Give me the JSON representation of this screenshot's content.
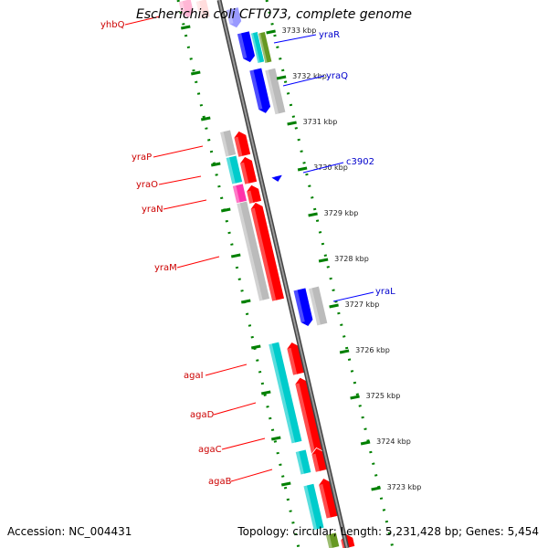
{
  "title": "Escherichia coli CFT073, complete genome",
  "footer": {
    "accession": "Accession: NC_004431",
    "topology": "Topology: circular; Length: 5,231,428 bp; Genes: 5,454"
  },
  "colors": {
    "plus_gene": "#ff0000",
    "minus_gene": "#0000ff",
    "plus_label": "#cc0000",
    "minus_label": "#0000cc",
    "scale": "#008000",
    "backbone": "#777777",
    "cds_cyan": "#00cccc",
    "cds_gray": "#bbbbbb",
    "cds_magenta": "#ff33aa",
    "cds_olive": "#669922"
  },
  "ticks": [
    {
      "label": "3733 kbp",
      "kbp": 3733
    },
    {
      "label": "3732 kbp",
      "kbp": 3732
    },
    {
      "label": "3731 kbp",
      "kbp": 3731
    },
    {
      "label": "3730 kbp",
      "kbp": 3730
    },
    {
      "label": "3729 kbp",
      "kbp": 3729
    },
    {
      "label": "3728 kbp",
      "kbp": 3728
    },
    {
      "label": "3727 kbp",
      "kbp": 3727
    },
    {
      "label": "3726 kbp",
      "kbp": 3726
    },
    {
      "label": "3725 kbp",
      "kbp": 3725
    },
    {
      "label": "3724 kbp",
      "kbp": 3724
    },
    {
      "label": "3723 kbp",
      "kbp": 3723
    }
  ],
  "genes": [
    {
      "name": "yhbQ",
      "strand": "plus",
      "labeled": true
    },
    {
      "name": "yraR",
      "strand": "minus",
      "labeled": true
    },
    {
      "name": "yraQ",
      "strand": "minus",
      "labeled": true
    },
    {
      "name": "yraP",
      "strand": "plus",
      "labeled": true
    },
    {
      "name": "yraO",
      "strand": "plus",
      "labeled": true
    },
    {
      "name": "yraN",
      "strand": "plus",
      "labeled": true
    },
    {
      "name": "c3902",
      "strand": "minus",
      "labeled": true
    },
    {
      "name": "yraM",
      "strand": "plus",
      "labeled": true
    },
    {
      "name": "yraL",
      "strand": "minus",
      "labeled": true
    },
    {
      "name": "agaI",
      "strand": "plus",
      "labeled": true
    },
    {
      "name": "agaD",
      "strand": "plus",
      "labeled": true
    },
    {
      "name": "agaC",
      "strand": "plus",
      "labeled": true
    },
    {
      "name": "agaB",
      "strand": "plus",
      "labeled": true
    }
  ]
}
